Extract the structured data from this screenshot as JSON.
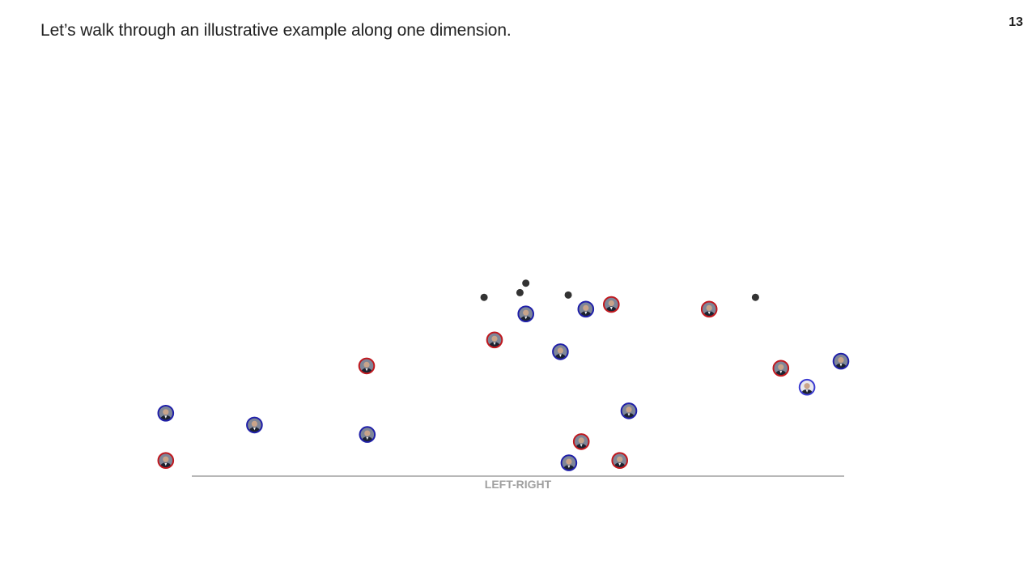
{
  "slide": {
    "title": "Let’s walk through an illustrative example along one dimension.",
    "page_number": "13"
  },
  "colors": {
    "democrat_ring": "#1f1fa8",
    "republican_ring": "#c0181e",
    "light_ring": "#3a3ad0",
    "dot": "#333333",
    "axis": "#a0a0a0",
    "face_dark": "#3b4150",
    "face_skin": "#c9a48a",
    "suit": "#1c2230"
  },
  "chart_data": {
    "type": "scatter",
    "xlabel": "LEFT-RIGHT",
    "ylabel": "",
    "xlim": [
      0,
      1
    ],
    "ylim": [
      0,
      1
    ],
    "grid": false,
    "legend": "none",
    "series": [
      {
        "kind": "portrait",
        "points": [
          {
            "x": -0.04,
            "y": 0.29,
            "party": "democrat"
          },
          {
            "x": -0.04,
            "y": 0.09,
            "party": "republican"
          },
          {
            "x": 0.096,
            "y": 0.24,
            "party": "democrat"
          },
          {
            "x": 0.268,
            "y": 0.49,
            "party": "republican"
          },
          {
            "x": 0.269,
            "y": 0.2,
            "party": "democrat"
          },
          {
            "x": 0.464,
            "y": 0.6,
            "party": "republican"
          },
          {
            "x": 0.512,
            "y": 0.71,
            "party": "democrat"
          },
          {
            "x": 0.565,
            "y": 0.55,
            "party": "democrat"
          },
          {
            "x": 0.578,
            "y": 0.08,
            "party": "democrat"
          },
          {
            "x": 0.597,
            "y": 0.17,
            "party": "republican"
          },
          {
            "x": 0.604,
            "y": 0.73,
            "party": "democrat"
          },
          {
            "x": 0.643,
            "y": 0.75,
            "party": "republican"
          },
          {
            "x": 0.656,
            "y": 0.09,
            "party": "republican"
          },
          {
            "x": 0.67,
            "y": 0.3,
            "party": "democrat"
          },
          {
            "x": 0.793,
            "y": 0.73,
            "party": "republican"
          },
          {
            "x": 0.903,
            "y": 0.48,
            "party": "republican"
          },
          {
            "x": 0.943,
            "y": 0.4,
            "party": "light"
          },
          {
            "x": 0.995,
            "y": 0.51,
            "party": "democrat"
          }
        ]
      },
      {
        "kind": "dot",
        "points": [
          {
            "x": 0.448,
            "y": 0.78
          },
          {
            "x": 0.503,
            "y": 0.8
          },
          {
            "x": 0.512,
            "y": 0.84
          },
          {
            "x": 0.577,
            "y": 0.79
          },
          {
            "x": 0.864,
            "y": 0.78
          }
        ]
      }
    ]
  }
}
